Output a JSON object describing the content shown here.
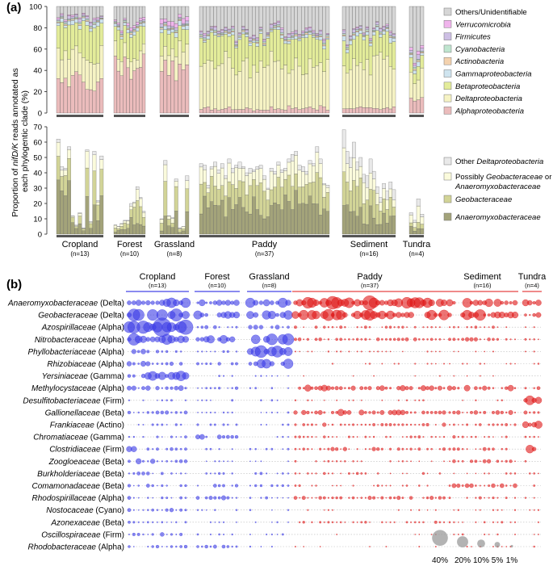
{
  "panel_a_label": "(a)",
  "panel_b_label": "(b)",
  "chart_data": [
    {
      "type": "bar",
      "subtype": "stacked-100",
      "panel": "a-top",
      "ylabel_parts": [
        "Proportion of ",
        "nifD/K",
        " reads annotated as",
        "each phylogentic clade (%)"
      ],
      "ylim": [
        0,
        100
      ],
      "yticks": [
        0,
        20,
        40,
        60,
        80,
        100
      ],
      "legend_position": "right",
      "groups": [
        {
          "name": "Cropland",
          "n_label": "(n=13)",
          "count": 13
        },
        {
          "name": "Forest",
          "n_label": "(n=10)",
          "count": 10
        },
        {
          "name": "Grassland",
          "n_label": "(n=8)",
          "count": 8
        },
        {
          "name": "Paddy",
          "n_label": "(n=37)",
          "count": 37
        },
        {
          "name": "Sediment",
          "n_label": "(n=16)",
          "count": 16
        },
        {
          "name": "Tundra",
          "n_label": "(n=4)",
          "count": 4
        }
      ],
      "series": [
        {
          "name": "Alphaproteobacteria",
          "italic": true,
          "color": "#ebbcbc"
        },
        {
          "name": "Deltaproteobacteria",
          "italic": true,
          "color": "#f6f3c4"
        },
        {
          "name": "Betaproteobacteria",
          "italic": true,
          "color": "#e3ec9a"
        },
        {
          "name": "Gammaproteobacteria",
          "italic": true,
          "color": "#cfe4ef"
        },
        {
          "name": "Actinobacteria",
          "italic": true,
          "color": "#f4d2ae"
        },
        {
          "name": "Cyanobacteria",
          "italic": true,
          "color": "#bfe5cf"
        },
        {
          "name": "Firmicutes",
          "italic": true,
          "color": "#cdbfe4"
        },
        {
          "name": "Verrucomicrobia",
          "italic": true,
          "color": "#f0b4ec"
        },
        {
          "name": "Others/Unidentifiable",
          "italic": false,
          "color": "#d6d6d6"
        }
      ],
      "group_profiles": {
        "Cropland": {
          "Alphaproteobacteria": 30,
          "Deltaproteobacteria": 25,
          "Betaproteobacteria": 28,
          "Gammaproteobacteria": 3,
          "Actinobacteria": 1,
          "Cyanobacteria": 1,
          "Firmicutes": 2,
          "Verrucomicrobia": 1,
          "Others/Unidentifiable": 9
        },
        "Forest": {
          "Alphaproteobacteria": 45,
          "Deltaproteobacteria": 12,
          "Betaproteobacteria": 20,
          "Gammaproteobacteria": 3,
          "Actinobacteria": 1,
          "Cyanobacteria": 1,
          "Firmicutes": 1,
          "Verrucomicrobia": 2,
          "Others/Unidentifiable": 15
        },
        "Grassland": {
          "Alphaproteobacteria": 40,
          "Deltaproteobacteria": 18,
          "Betaproteobacteria": 18,
          "Gammaproteobacteria": 4,
          "Actinobacteria": 1,
          "Cyanobacteria": 1,
          "Firmicutes": 2,
          "Verrucomicrobia": 4,
          "Others/Unidentifiable": 12
        },
        "Paddy": {
          "Alphaproteobacteria": 4,
          "Deltaproteobacteria": 40,
          "Betaproteobacteria": 26,
          "Gammaproteobacteria": 2,
          "Actinobacteria": 1,
          "Cyanobacteria": 1,
          "Firmicutes": 2,
          "Verrucomicrobia": 1,
          "Others/Unidentifiable": 23
        },
        "Sediment": {
          "Alphaproteobacteria": 5,
          "Deltaproteobacteria": 42,
          "Betaproteobacteria": 22,
          "Gammaproteobacteria": 3,
          "Actinobacteria": 1,
          "Cyanobacteria": 1,
          "Firmicutes": 2,
          "Verrucomicrobia": 1,
          "Others/Unidentifiable": 23
        },
        "Tundra": {
          "Alphaproteobacteria": 12,
          "Deltaproteobacteria": 20,
          "Betaproteobacteria": 10,
          "Gammaproteobacteria": 3,
          "Actinobacteria": 1,
          "Cyanobacteria": 1,
          "Firmicutes": 3,
          "Verrucomicrobia": 2,
          "Others/Unidentifiable": 48
        }
      }
    },
    {
      "type": "bar",
      "subtype": "stacked",
      "panel": "a-bottom",
      "ylim": [
        0,
        70
      ],
      "yticks": [
        0,
        10,
        20,
        30,
        40,
        50,
        60,
        70
      ],
      "legend_position": "right",
      "series": [
        {
          "name": "Anaeromyxobacteraceae",
          "label_parts": [
            [
              "Anaeromyxobacteraceae",
              true
            ]
          ],
          "color": "#a3a37a"
        },
        {
          "name": "Geobacteraceae",
          "label_parts": [
            [
              "Geobacteraceae",
              true
            ]
          ],
          "color": "#d2d497"
        },
        {
          "name": "Possibly Geobacteraceae or Anaeromyxobacteraceae",
          "label_parts": [
            [
              "Possibly ",
              false
            ],
            [
              "Geobacteraceae",
              true
            ],
            [
              " or",
              false
            ],
            [
              "|",
              false
            ],
            [
              "Anaeromyxobacteraceae",
              true
            ]
          ],
          "color": "#fbfbdc"
        },
        {
          "name": "Other Deltaproteobacteria",
          "label_parts": [
            [
              "Other ",
              false
            ],
            [
              "Deltaproteobacteria",
              true
            ]
          ],
          "color": "#e9e9e9"
        }
      ],
      "totals": {
        "Cropland": [
          62,
          44,
          43,
          57,
          12,
          6,
          14,
          4,
          55,
          8,
          54,
          22,
          51
        ],
        "Forest": [
          6,
          5,
          7,
          9,
          9,
          20,
          21,
          31,
          24,
          15
        ],
        "Grassland": [
          10,
          48,
          12,
          11,
          36,
          4,
          5,
          38
        ],
        "Paddy": [
          46,
          45,
          32,
          44,
          47,
          42,
          46,
          38,
          49,
          43,
          45,
          47,
          44,
          40,
          43,
          42,
          44,
          45,
          38,
          30,
          43,
          41,
          47,
          42,
          43,
          49,
          52,
          54,
          45,
          44,
          41,
          48,
          46,
          57,
          49,
          33,
          32
        ],
        "Sediment": [
          68,
          54,
          50,
          60,
          47,
          50,
          39,
          38,
          49,
          41,
          31,
          24,
          33,
          28,
          34,
          29
        ],
        "Tundra": [
          14,
          9,
          23,
          13
        ]
      },
      "composition": {
        "Cropland": [
          0.55,
          0.3,
          0.12,
          0.03
        ],
        "Forest": [
          0.35,
          0.4,
          0.2,
          0.05
        ],
        "Grassland": [
          0.35,
          0.4,
          0.2,
          0.05
        ],
        "Paddy": [
          0.4,
          0.35,
          0.2,
          0.05
        ],
        "Sediment": [
          0.3,
          0.3,
          0.25,
          0.15
        ],
        "Tundra": [
          0.25,
          0.25,
          0.35,
          0.15
        ]
      }
    },
    {
      "type": "scatter",
      "subtype": "bubble",
      "panel": "b",
      "size_legend": {
        "labels": [
          "40%",
          "20%",
          "10%",
          "5%",
          "1%"
        ],
        "values": [
          40,
          20,
          10,
          5,
          1
        ]
      },
      "groups": [
        {
          "name": "Cropland",
          "n_label": "(n=13)",
          "count": 13,
          "color": "#3b3be6"
        },
        {
          "name": "Forest",
          "n_label": "(n=10)",
          "count": 10,
          "color": "#3b3be6"
        },
        {
          "name": "Grassland",
          "n_label": "(n=8)",
          "count": 8,
          "color": "#3b3be6"
        },
        {
          "name": "Paddy",
          "n_label": "(n=37)",
          "count": 37,
          "color": "#e01818"
        },
        {
          "name": "Sediment",
          "n_label": "(n=16)",
          "count": 16,
          "color": "#e01818"
        },
        {
          "name": "Tundra",
          "n_label": "(n=4)",
          "count": 4,
          "color": "#e01818"
        }
      ],
      "rows": [
        {
          "family": "Anaeromyxobacteraceae",
          "clade": "(Delta)"
        },
        {
          "family": "Geobacteraceae",
          "clade": "(Delta)"
        },
        {
          "family": "Azospirillaceae",
          "clade": "(Alpha)"
        },
        {
          "family": "Nitrobacteraceae",
          "clade": "(Alpha)"
        },
        {
          "family": "Phyllobacteriaceae",
          "clade": "(Alpha)"
        },
        {
          "family": "Rhizobiaceae",
          "clade": "(Alpha)"
        },
        {
          "family": "Yersiniaceae",
          "clade": "(Gamma)"
        },
        {
          "family": "Methylocystaceae",
          "clade": "(Alpha)"
        },
        {
          "family": "Desulfitobacteriaceae",
          "clade": "(Firm)"
        },
        {
          "family": "Gallionellaceae",
          "clade": "(Beta)"
        },
        {
          "family": "Frankiaceae",
          "clade": "(Actino)"
        },
        {
          "family": "Chromatiaceae",
          "clade": "(Gamma)"
        },
        {
          "family": "Clostridiaceae",
          "clade": "(Firm)"
        },
        {
          "family": "Zoogloeaceae",
          "clade": "(Beta)"
        },
        {
          "family": "Burkholderiaceae",
          "clade": "(Beta)"
        },
        {
          "family": "Comamonadaceae",
          "clade": "(Beta)"
        },
        {
          "family": "Rhodospirillaceae",
          "clade": "(Alpha)"
        },
        {
          "family": "Nostocaceae",
          "clade": "(Cyano)"
        },
        {
          "family": "Azonexaceae",
          "clade": "(Beta)"
        },
        {
          "family": "Oscillospiraceae",
          "clade": "(Firm)"
        },
        {
          "family": "Rhodobacteraceae",
          "clade": "(Alpha)"
        }
      ],
      "typical_percent": {
        "Cropland": [
          15,
          18,
          25,
          12,
          2,
          3,
          8,
          2,
          0.5,
          1,
          0.5,
          0.5,
          2,
          2,
          1,
          1,
          0.8,
          1,
          0.5,
          1,
          1
        ],
        "Forest": [
          4,
          5,
          1,
          5,
          0.5,
          0.8,
          0.3,
          0.6,
          0.3,
          0.3,
          0.5,
          3,
          0.3,
          0.3,
          0.5,
          0.8,
          1.5,
          0.3,
          0.3,
          0.3,
          1
        ],
        "Grassland": [
          6,
          5,
          2,
          18,
          15,
          10,
          0.3,
          0.5,
          0.3,
          0.3,
          0.3,
          0.3,
          0.3,
          0.3,
          1.5,
          0.5,
          0.5,
          0.3,
          0.3,
          0.3,
          0.3
        ],
        "Paddy": [
          12,
          10,
          0.5,
          1,
          0.2,
          0.2,
          0.1,
          3,
          0.2,
          3,
          1,
          0.5,
          1,
          0.3,
          0.5,
          0.3,
          1,
          0.2,
          0.5,
          0.1,
          0.1
        ],
        "Sediment": [
          8,
          7,
          0.5,
          1,
          0.2,
          0.2,
          0.1,
          3,
          0.2,
          1.5,
          0.8,
          0.5,
          1,
          1,
          0.3,
          1.5,
          0.5,
          0.2,
          0.3,
          0.2,
          0.2
        ],
        "Tundra": [
          3,
          2,
          0.3,
          0.5,
          0.2,
          0.2,
          0.1,
          1,
          8,
          1,
          6,
          0.3,
          5,
          0.3,
          0.3,
          0.3,
          0.3,
          0.3,
          0.2,
          0.2,
          0.2
        ]
      }
    }
  ]
}
